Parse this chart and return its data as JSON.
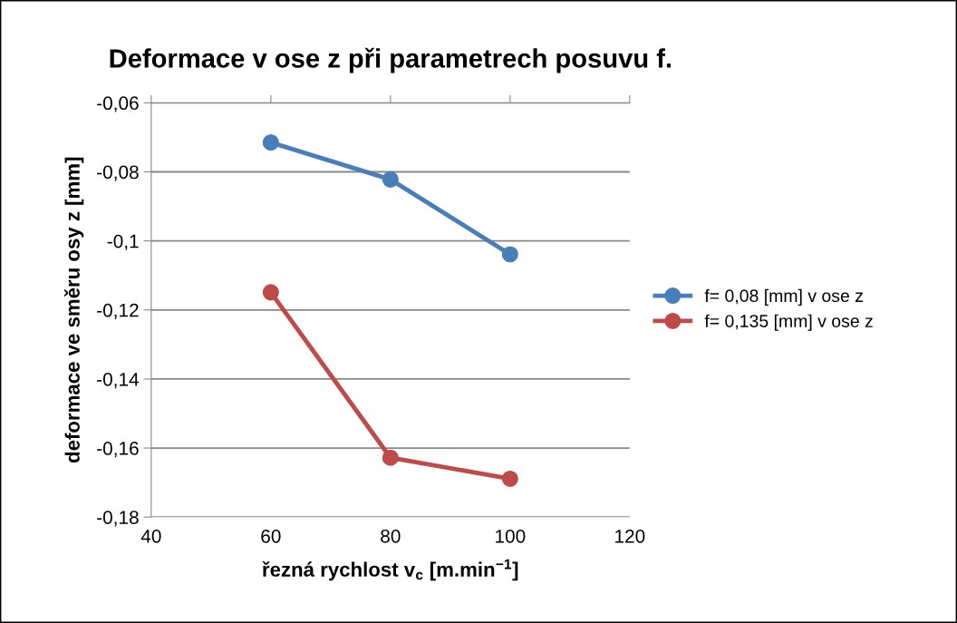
{
  "chart_data": {
    "type": "line",
    "title": "Deformace v ose z při parametrech posuvu f.",
    "xlabel": "řezná rychlost v$_{c}$ [m.min$^{−1}$]",
    "ylabel": "deformace ve směru osy z [mm]",
    "x": [
      60,
      80,
      100
    ],
    "series": [
      {
        "name": "f= 0,08 [mm] v ose z",
        "color": "#4a7ebb",
        "values": [
          -0.0715,
          -0.0822,
          -0.1039
        ]
      },
      {
        "name": "f= 0,135 [mm] v ose z",
        "color": "#be4b48",
        "values": [
          -0.1149,
          -0.1628,
          -0.1689
        ]
      }
    ],
    "xlim": [
      40,
      120
    ],
    "xticks": [
      40,
      60,
      80,
      100,
      120
    ],
    "ylim": [
      -0.18,
      -0.06
    ],
    "yticks": [
      {
        "value": -0.18,
        "label": "-0,18"
      },
      {
        "value": -0.16,
        "label": "-0,16"
      },
      {
        "value": -0.14,
        "label": "-0,14"
      },
      {
        "value": -0.12,
        "label": "-0,12"
      },
      {
        "value": -0.1,
        "label": "-0,1"
      },
      {
        "value": -0.08,
        "label": "-0,08"
      },
      {
        "value": -0.06,
        "label": "-0,06"
      }
    ],
    "grid": "y",
    "legend": "right",
    "marker": "circle",
    "line_style": "solid"
  }
}
